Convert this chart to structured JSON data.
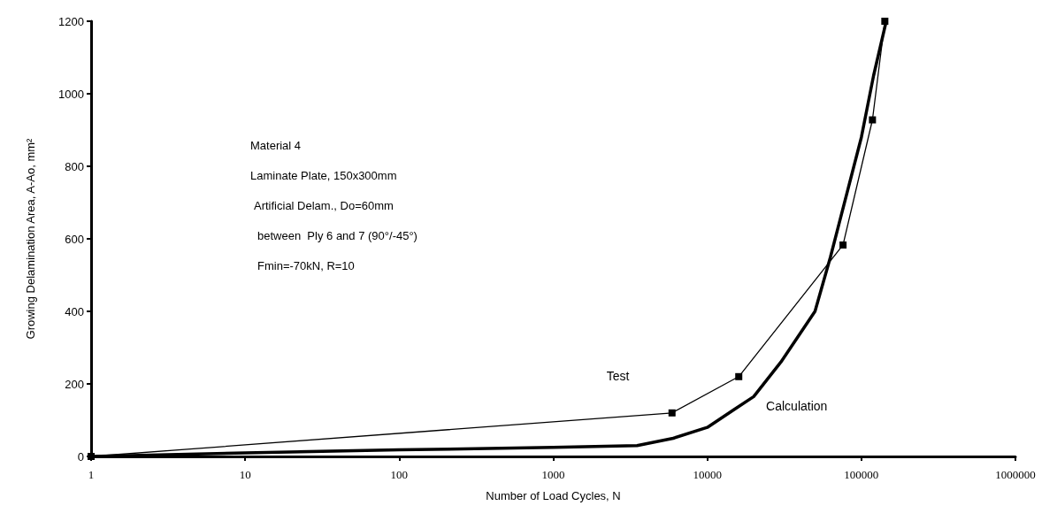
{
  "chart_data": {
    "type": "line",
    "xlabel": "Number of Load Cycles, N",
    "ylabel": "Growing Delamination Area, A-Ao, mm²",
    "log": "x",
    "grid": false,
    "legend": false,
    "xlim": [
      1,
      1000000
    ],
    "xticks": [
      1,
      10,
      100,
      1000,
      10000,
      100000,
      1000000
    ],
    "ylim": [
      0,
      1200
    ],
    "yticks": [
      0,
      200,
      400,
      600,
      800,
      1000,
      1200
    ],
    "annotations": [
      "Material 4",
      "Laminate Plate, 150x300mm",
      "Artificial Delam., Do=60mm",
      "between  Ply 6 and 7 (90°/-45°)",
      "Fmin=-70kN, R=10"
    ],
    "series": [
      {
        "name": "Test",
        "color": "#000000",
        "marker": "square",
        "x": [
          1,
          5900,
          16000,
          76000,
          118000,
          142000
        ],
        "values": [
          0,
          120,
          220,
          583,
          928,
          1200
        ]
      },
      {
        "name": "Calculation",
        "color": "#000000",
        "marker": "none",
        "x": [
          1,
          10,
          100,
          1000,
          3500,
          6000,
          10000,
          15000,
          20000,
          30000,
          50000,
          63000,
          100000,
          120000,
          145000
        ],
        "values": [
          0,
          10,
          18,
          25,
          30,
          50,
          80,
          130,
          165,
          260,
          400,
          550,
          880,
          1050,
          1200
        ]
      }
    ]
  }
}
